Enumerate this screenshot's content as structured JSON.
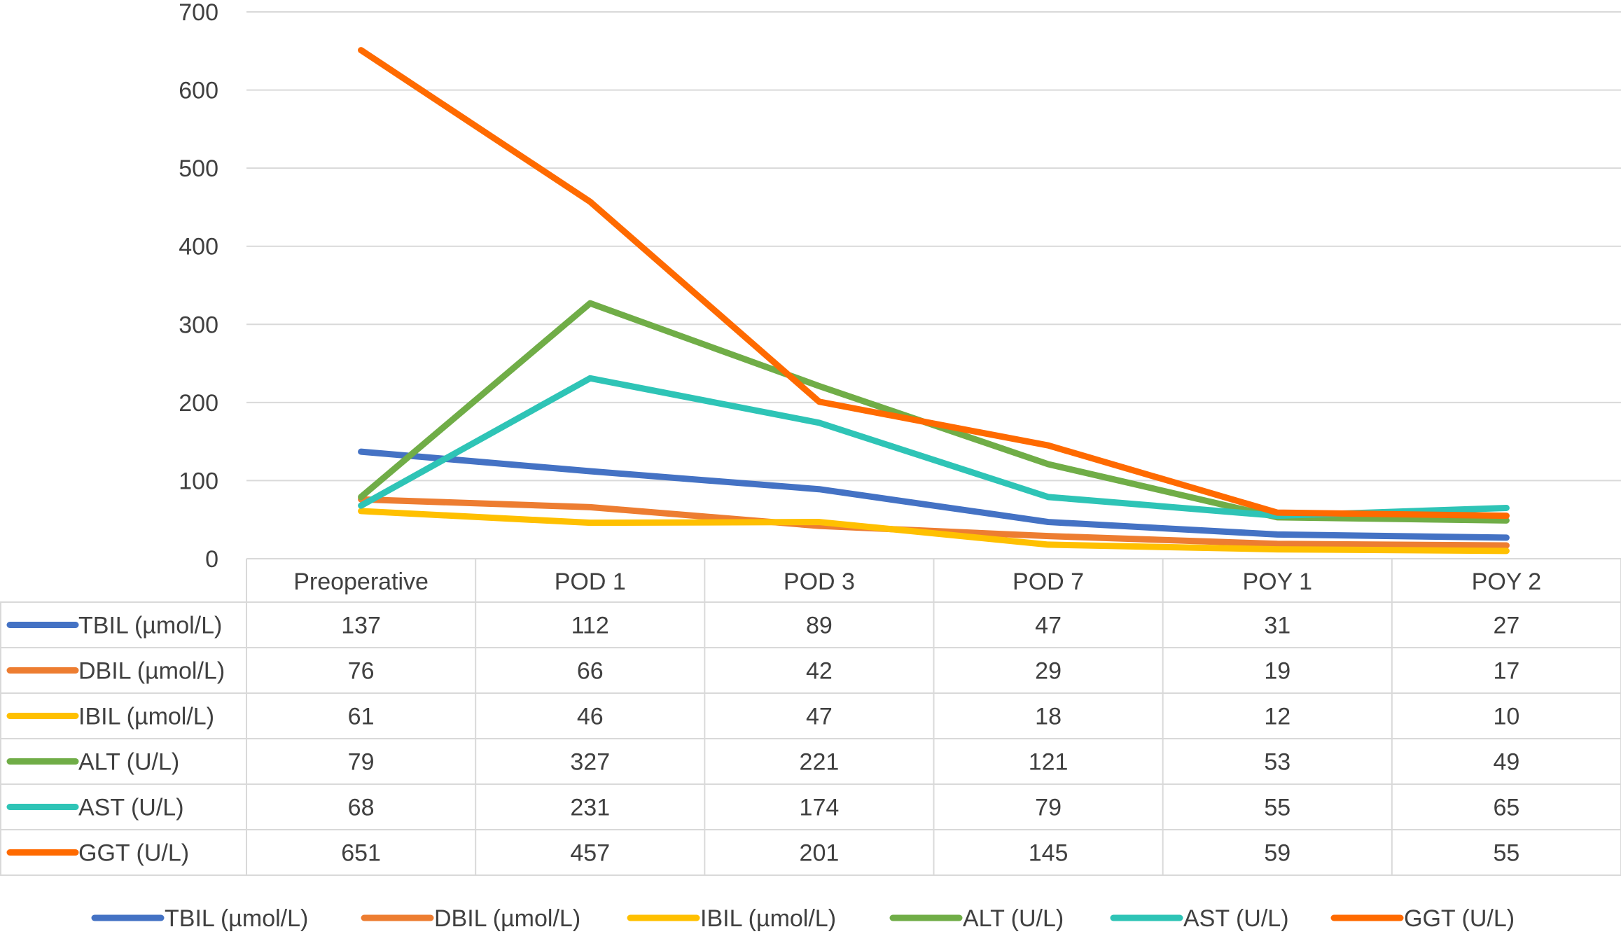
{
  "chart_data": {
    "type": "line",
    "title": "",
    "xlabel": "",
    "ylabel": "",
    "ylim": [
      0,
      700
    ],
    "yticks": [
      0,
      100,
      200,
      300,
      400,
      500,
      600,
      700
    ],
    "grid": true,
    "legend": "bottom",
    "data_table": true,
    "categories": [
      "Preoperative",
      "POD 1",
      "POD 3",
      "POD 7",
      "POY 1",
      "POY 2"
    ],
    "series": [
      {
        "name": "TBIL (µmol/L)",
        "color": "#4472C4",
        "values": [
          137,
          112,
          89,
          47,
          31,
          27
        ]
      },
      {
        "name": "DBIL (µmol/L)",
        "color": "#ED7D31",
        "values": [
          76,
          66,
          42,
          29,
          19,
          17
        ]
      },
      {
        "name": "IBIL (µmol/L)",
        "color": "#FFC000",
        "values": [
          61,
          46,
          47,
          18,
          12,
          10
        ]
      },
      {
        "name": "ALT (U/L)",
        "color": "#70AD47",
        "values": [
          79,
          327,
          221,
          121,
          53,
          49
        ]
      },
      {
        "name": "AST (U/L)",
        "color": "#2EC4B6",
        "values": [
          68,
          231,
          174,
          79,
          55,
          65
        ]
      },
      {
        "name": "GGT (U/L)",
        "color": "#FF6A00",
        "values": [
          651,
          457,
          201,
          145,
          59,
          55
        ]
      }
    ]
  }
}
